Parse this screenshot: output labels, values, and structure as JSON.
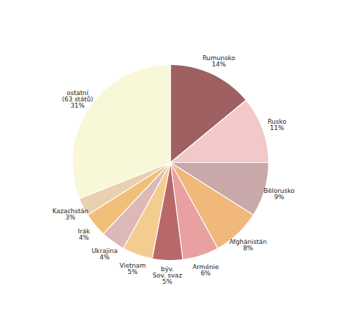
{
  "chart_data": {
    "type": "pie",
    "categories": [
      "Rumunsko\n14%",
      "Rusko\n11%",
      "Bělorusko\n9%",
      "Afghánistán\n8%",
      "Arménie\n6%",
      "býv.\nSov. svaz\n5%",
      "Vietnam\n5%",
      "Ukrajina\n4%",
      "Irák\n4%",
      "Kazachstán\n3%",
      "ostatní\n(63 států)\n31%"
    ],
    "values": [
      14,
      11,
      9,
      8,
      6,
      5,
      5,
      4,
      4,
      3,
      31
    ],
    "colors": [
      "#9e6060",
      "#f2c8c8",
      "#c8a8a8",
      "#f0b87a",
      "#e8a0a0",
      "#b86868",
      "#f5cc90",
      "#ddb8b8",
      "#f0c078",
      "#e8d0b0",
      "#f8f8d8"
    ]
  }
}
